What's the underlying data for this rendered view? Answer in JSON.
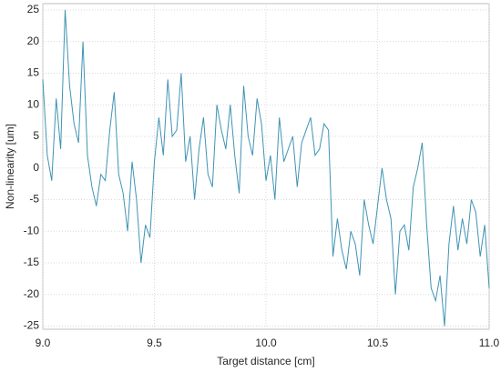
{
  "chart_data": {
    "type": "line",
    "x_label": "Target distance [cm]",
    "y_label": "Non-linearity [um]",
    "x": [
      9.0,
      9.02,
      9.04,
      9.06,
      9.08,
      9.1,
      9.12,
      9.14,
      9.16,
      9.18,
      9.2,
      9.22,
      9.24,
      9.26,
      9.28,
      9.3,
      9.32,
      9.34,
      9.36,
      9.38,
      9.4,
      9.42,
      9.44,
      9.46,
      9.48,
      9.5,
      9.52,
      9.54,
      9.56,
      9.58,
      9.6,
      9.62,
      9.64,
      9.66,
      9.68,
      9.7,
      9.72,
      9.74,
      9.76,
      9.78,
      9.8,
      9.82,
      9.84,
      9.86,
      9.88,
      9.9,
      9.92,
      9.94,
      9.96,
      9.98,
      10.0,
      10.02,
      10.04,
      10.06,
      10.08,
      10.1,
      10.12,
      10.14,
      10.16,
      10.18,
      10.2,
      10.22,
      10.24,
      10.26,
      10.28,
      10.3,
      10.32,
      10.34,
      10.36,
      10.38,
      10.4,
      10.42,
      10.44,
      10.46,
      10.48,
      10.5,
      10.52,
      10.54,
      10.56,
      10.58,
      10.6,
      10.62,
      10.64,
      10.66,
      10.68,
      10.7,
      10.72,
      10.74,
      10.76,
      10.78,
      10.8,
      10.82,
      10.84,
      10.86,
      10.88,
      10.9,
      10.92,
      10.94,
      10.96,
      10.98,
      11.0
    ],
    "values": [
      14,
      2,
      -2,
      11,
      3,
      25,
      13,
      7,
      4,
      20,
      2,
      -3,
      -6,
      -1,
      -2,
      6,
      12,
      -1,
      -4,
      -10,
      1,
      -5,
      -15,
      -9,
      -11,
      1,
      8,
      2,
      14,
      5,
      6,
      15,
      1,
      5,
      -5,
      3,
      8,
      -1,
      -3,
      10,
      6,
      3,
      10,
      2,
      -4,
      13,
      5,
      2,
      11,
      7,
      -2,
      2,
      -5,
      8,
      1,
      3,
      5,
      -3,
      4,
      6,
      8,
      2,
      3,
      7,
      6,
      -14,
      -8,
      -13,
      -16,
      -10,
      -12,
      -17,
      -5,
      -9,
      -12,
      -6,
      0,
      -5,
      -8,
      -20,
      -10,
      -9,
      -13,
      -3,
      0,
      4,
      -9,
      -19,
      -21,
      -17,
      -25,
      -12,
      -6,
      -13,
      -8,
      -12,
      -5,
      -7,
      -14,
      -9,
      -19
    ],
    "color": "#3f93b4",
    "xlim": [
      9,
      11
    ],
    "xticks": [
      {
        "value": 9,
        "label": "9.0"
      },
      9.5,
      {
        "value": 10,
        "label": "10.0"
      },
      10.5,
      {
        "value": 11,
        "label": "11.0"
      }
    ],
    "ylim": [
      -25.5,
      26
    ],
    "yticks": [
      -25,
      -20,
      -15,
      -10,
      -5,
      0,
      5,
      10,
      15,
      20,
      25
    ],
    "grid": true
  }
}
